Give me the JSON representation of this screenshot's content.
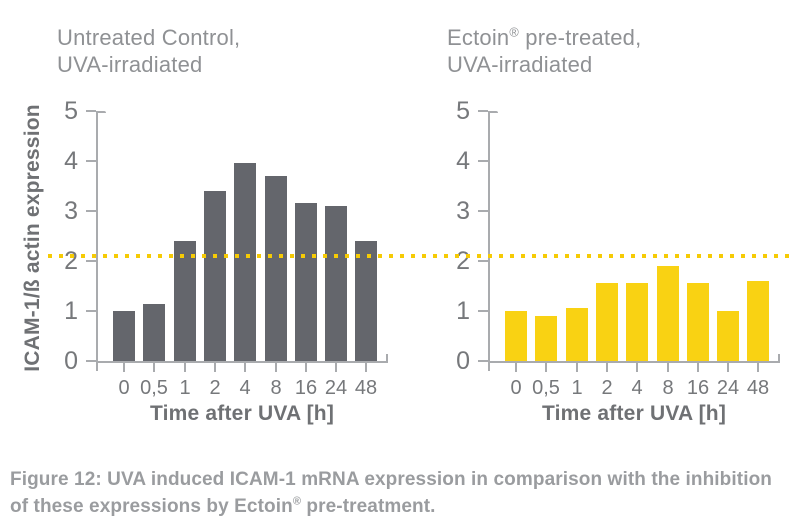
{
  "figure_label": "Figure 12",
  "titles": [
    {
      "line1_pre": "Untreated Control,",
      "line1_sup": "",
      "line1_post": "",
      "line2": "UVA-irradiated"
    },
    {
      "line1_pre": "Ectoin",
      "line1_sup": "®",
      "line1_post": " pre-treated,",
      "line2": "UVA-irradiated"
    }
  ],
  "chart_data": [
    {
      "type": "bar",
      "title": "Untreated Control, UVA-irradiated",
      "categories": [
        "0",
        "0,5",
        "1",
        "2",
        "4",
        "8",
        "16",
        "24",
        "48"
      ],
      "values": [
        1.0,
        1.15,
        2.4,
        3.4,
        3.95,
        3.7,
        3.15,
        3.1,
        2.4
      ],
      "xlabel": "Time after UVA [h]",
      "ylabel": "ICAM-1/ß actin expression",
      "ylim": [
        0,
        5
      ],
      "yticks": [
        0,
        1,
        2,
        3,
        4,
        5
      ],
      "grid": false,
      "legend": "none",
      "bar_color": "#64666C"
    },
    {
      "type": "bar",
      "title": "Ectoin® pre-treated, UVA-irradiated",
      "categories": [
        "0",
        "0,5",
        "1",
        "2",
        "4",
        "8",
        "16",
        "24",
        "48"
      ],
      "values": [
        1.0,
        0.9,
        1.05,
        1.55,
        1.55,
        1.9,
        1.55,
        1.0,
        1.6
      ],
      "xlabel": "Time after UVA [h]",
      "ylabel": "",
      "ylim": [
        0,
        5
      ],
      "yticks": [
        0,
        1,
        2,
        3,
        4,
        5
      ],
      "grid": false,
      "legend": "none",
      "bar_color": "#F9D213"
    }
  ],
  "threshold_line": {
    "value": 2.1,
    "color": "#F6CB05",
    "style": "dotted",
    "spans": "both charts"
  },
  "caption": {
    "line1": "Figure 12: UVA induced ICAM-1 mRNA expression in comparison with the inhibition",
    "line2_pre": "of these expressions by Ectoin",
    "line2_sup": "®",
    "line2_post": " pre-treatment."
  },
  "colors": {
    "bar_dark": "#64666C",
    "bar_yellow": "#F9D213",
    "threshold_yellow": "#F6CB05",
    "axis_gray": "#A9ABAE",
    "tick_text_gray": "#76787B",
    "title_text_gray": "#8F9194",
    "bold_label_gray": "#6F7174",
    "caption_gray": "#9A9C9F",
    "background": "#FFFFFF"
  }
}
